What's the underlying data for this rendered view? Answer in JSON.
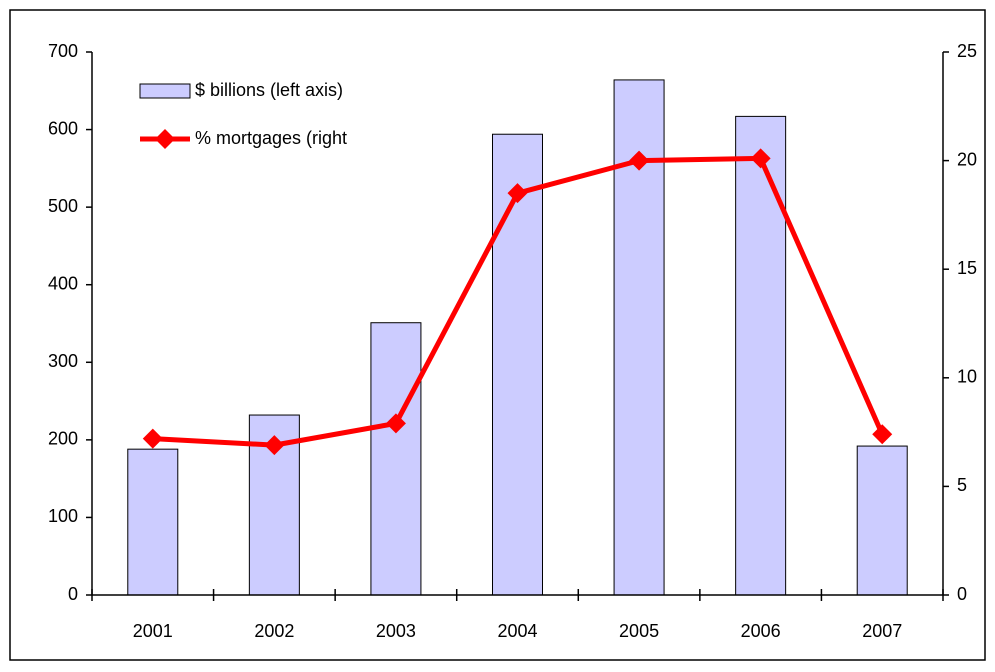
{
  "chart_data": {
    "type": "bar_line",
    "categories": [
      "2001",
      "2002",
      "2003",
      "2004",
      "2005",
      "2006",
      "2007"
    ],
    "series": [
      {
        "name": "$ billions (left axis)",
        "type": "bar",
        "color": "#ccccff",
        "values": [
          188,
          232,
          351,
          594,
          664,
          617,
          192
        ]
      },
      {
        "name": "% mortgages (right",
        "type": "line",
        "axis": "y2",
        "color": "#ff0000",
        "values": [
          7.2,
          6.9,
          7.9,
          18.5,
          20.0,
          20.1,
          7.4
        ]
      }
    ],
    "ylim": [
      0,
      700
    ],
    "yticks": [
      0,
      100,
      200,
      300,
      400,
      500,
      600,
      700
    ],
    "y2lim": [
      0,
      25
    ],
    "y2ticks": [
      0,
      5,
      10,
      15,
      20,
      25
    ],
    "grid": false,
    "legend": "top-left"
  }
}
